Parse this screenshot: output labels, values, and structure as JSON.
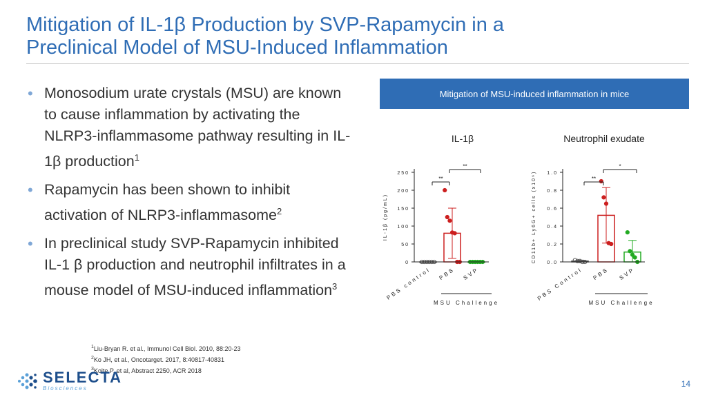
{
  "slide": {
    "title_line1": "Mitigation of IL-1β Production by SVP-Rapamycin in a",
    "title_line2": "Preclinical Model of MSU-Induced Inflammation",
    "page_number": "14"
  },
  "bullets": [
    {
      "text": "Monosodium urate crystals (MSU) are known to cause inflammation by activating the NLRP3-inflammasome pathway resulting in IL-1β production",
      "ref": "1"
    },
    {
      "text": "Rapamycin has been shown to inhibit activation of NLRP3-inflammasome",
      "ref": "2"
    },
    {
      "text": "In preclinical study SVP-Rapamycin inhibited IL-1 β production and neutrophil infiltrates in a mouse model of MSU-induced inflammation",
      "ref": "3"
    }
  ],
  "references": [
    {
      "num": "1",
      "text": "Liu-Bryan R. et al., Immunol Cell Biol. 2010, 88:20-23"
    },
    {
      "num": "2",
      "text": "Ko JH, et al., Oncotarget. 2017, 8:40817-40831"
    },
    {
      "num": "3",
      "text": "Kolte P. et al, Abstract 2250, ACR 2018"
    }
  ],
  "logo": {
    "name": "SELECTA",
    "sub": "Biosciences"
  },
  "banner": "Mitigation of MSU-induced inflammation in mice",
  "colors": {
    "title": "#2f6db5",
    "banner": "#2f6db5",
    "pbs_control": "#555555",
    "pbs": "#cc1f1f",
    "svp": "#22aa22"
  },
  "chart_data": [
    {
      "type": "bar",
      "title": "IL-1β",
      "ylabel": "IL-1β (pg/mL)",
      "ylim": [
        0,
        250
      ],
      "yticks": [
        "0",
        "50",
        "100",
        "150",
        "200",
        "250"
      ],
      "categories": [
        "PBS control",
        "PBS",
        "SVP"
      ],
      "group_label": "MSU Challenge",
      "values": [
        0,
        80,
        0
      ],
      "error_upper": [
        0,
        150,
        0
      ],
      "error_lower": [
        0,
        10,
        0
      ],
      "points": [
        [
          0,
          0,
          0,
          0,
          0,
          0
        ],
        [
          200,
          125,
          115,
          82,
          80,
          0,
          0
        ],
        [
          0,
          0,
          0,
          0,
          0,
          0
        ]
      ],
      "significance": [
        {
          "from": "PBS control",
          "to": "PBS",
          "label": "**"
        },
        {
          "from": "PBS",
          "to": "SVP",
          "label": "**"
        }
      ]
    },
    {
      "type": "bar",
      "title": "Neutrophil exudate",
      "ylabel": "CD11b+ Ly6G+ cells (x10⁶)",
      "ylim": [
        0,
        1.0
      ],
      "yticks": [
        "0.0",
        "0.2",
        "0.4",
        "0.6",
        "0.8",
        "1.0"
      ],
      "categories": [
        "PBS Control",
        "PBS",
        "SVP"
      ],
      "group_label": "MSU Challenge",
      "values": [
        0.01,
        0.52,
        0.11
      ],
      "error_upper": [
        0.02,
        0.83,
        0.24
      ],
      "error_lower": [
        0.0,
        0.21,
        0.0
      ],
      "points": [
        [
          0.02,
          0.01,
          0.01,
          0.0,
          0.0
        ],
        [
          0.9,
          0.72,
          0.65,
          0.21,
          0.2
        ],
        [
          0.33,
          0.12,
          0.08,
          0.05,
          0.0
        ]
      ],
      "significance": [
        {
          "from": "PBS Control",
          "to": "PBS",
          "label": "**"
        },
        {
          "from": "PBS",
          "to": "SVP",
          "label": "*"
        }
      ]
    }
  ]
}
